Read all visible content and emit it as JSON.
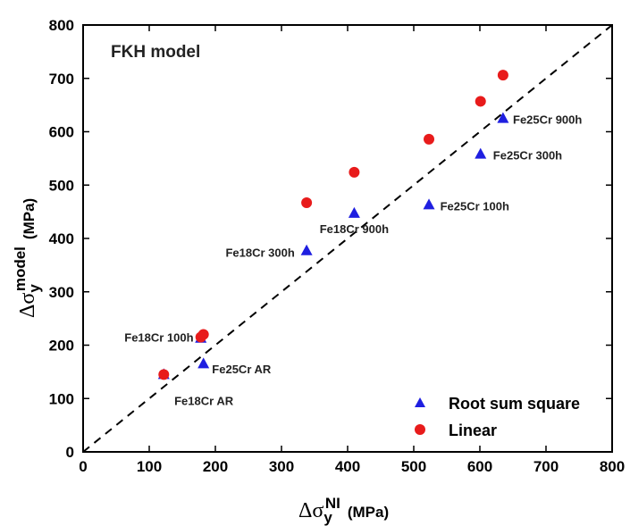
{
  "chart_data": {
    "type": "scatter",
    "title": "FKH model",
    "xlabel": "Δσ",
    "xlabel_sub": "y",
    "xlabel_sup": "NI",
    "xlabel_unit": "(MPa)",
    "ylabel": "Δσ",
    "ylabel_sub": "y",
    "ylabel_sup": "model",
    "ylabel_unit": "(MPa)",
    "xlim": [
      0,
      800
    ],
    "ylim": [
      0,
      800
    ],
    "xticks": [
      "0",
      "100",
      "200",
      "300",
      "400",
      "500",
      "600",
      "700",
      "800"
    ],
    "yticks": [
      "0",
      "100",
      "200",
      "300",
      "400",
      "500",
      "600",
      "700",
      "800"
    ],
    "reference_line": {
      "style": "dashed",
      "from": [
        0,
        0
      ],
      "to": [
        800,
        800
      ]
    },
    "legend_position": "bottom-right",
    "series": [
      {
        "name": "Root sum square",
        "marker": "triangle",
        "color": "#1f1fe0",
        "points": [
          {
            "x": 122,
            "y": 145
          },
          {
            "x": 182,
            "y": 165
          },
          {
            "x": 178,
            "y": 213
          },
          {
            "x": 338,
            "y": 377
          },
          {
            "x": 410,
            "y": 447
          },
          {
            "x": 523,
            "y": 463
          },
          {
            "x": 601,
            "y": 558
          },
          {
            "x": 635,
            "y": 625
          }
        ]
      },
      {
        "name": "Linear",
        "marker": "circle",
        "color": "#e81b1b",
        "points": [
          {
            "x": 122,
            "y": 145
          },
          {
            "x": 178,
            "y": 215
          },
          {
            "x": 182,
            "y": 220
          },
          {
            "x": 338,
            "y": 467
          },
          {
            "x": 410,
            "y": 524
          },
          {
            "x": 523,
            "y": 586
          },
          {
            "x": 601,
            "y": 657
          },
          {
            "x": 635,
            "y": 706
          }
        ]
      }
    ],
    "annotations": [
      {
        "text": "Fe18Cr AR",
        "x": 138,
        "y": 88,
        "anchor": "start"
      },
      {
        "text": "Fe25Cr AR",
        "x": 195,
        "y": 147,
        "anchor": "start"
      },
      {
        "text": "Fe18Cr 100h",
        "x": 167,
        "y": 207,
        "anchor": "end"
      },
      {
        "text": "Fe18Cr 300h",
        "x": 320,
        "y": 366,
        "anchor": "end"
      },
      {
        "text": "Fe18Cr 900h",
        "x": 410,
        "y": 410,
        "anchor": "middle"
      },
      {
        "text": "Fe25Cr 100h",
        "x": 540,
        "y": 453,
        "anchor": "start"
      },
      {
        "text": "Fe25Cr 300h",
        "x": 620,
        "y": 548,
        "anchor": "start"
      },
      {
        "text": "Fe25Cr 900h",
        "x": 650,
        "y": 615,
        "anchor": "start"
      }
    ]
  }
}
